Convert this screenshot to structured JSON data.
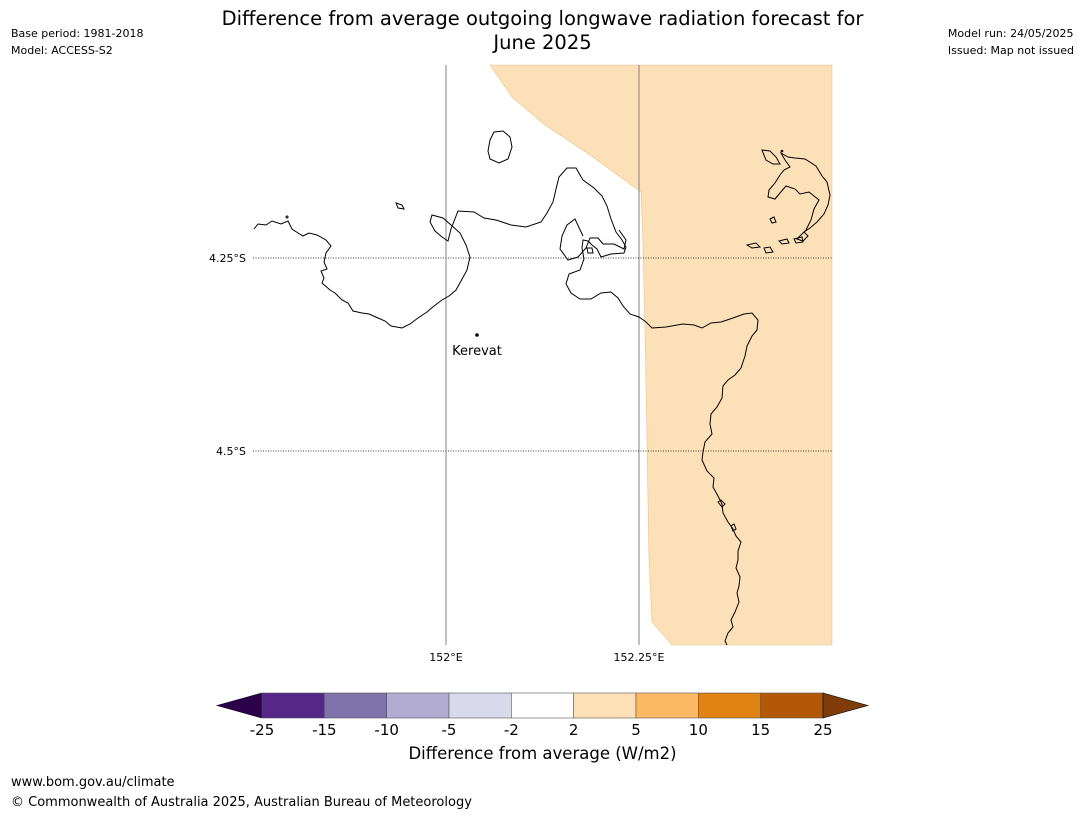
{
  "header": {
    "title_line1": "Difference from average outgoing longwave radiation forecast for",
    "title_line2": "June 2025",
    "base_period": "Base period: 1981-2018",
    "model": "Model: ACCESS-S2",
    "model_run": "Model run: 24/05/2025",
    "issued": "Issued: Map not issued"
  },
  "map": {
    "lat_labels": [
      "4.25°S",
      "4.5°S"
    ],
    "lon_labels": [
      "152°E",
      "152.25°E"
    ],
    "place": {
      "name": "Kerevat"
    }
  },
  "colorbar": {
    "label": "Difference from average (W/m2)",
    "ticks": [
      "-25",
      "-15",
      "-10",
      "-5",
      "-2",
      "2",
      "5",
      "10",
      "15",
      "25"
    ],
    "colors": [
      "#542788",
      "#8073ac",
      "#b2abd2",
      "#d8daeb",
      "#ffffff",
      "#fee0b6",
      "#fdb863",
      "#e08214",
      "#b35806"
    ],
    "under_color": "#2d004b",
    "over_color": "#7f3b08",
    "map_fill_color": "#fce0b7"
  },
  "footer": {
    "site": "www.bom.gov.au/climate",
    "copyright": "© Commonwealth of Australia 2025, Australian Bureau of Meteorology"
  }
}
